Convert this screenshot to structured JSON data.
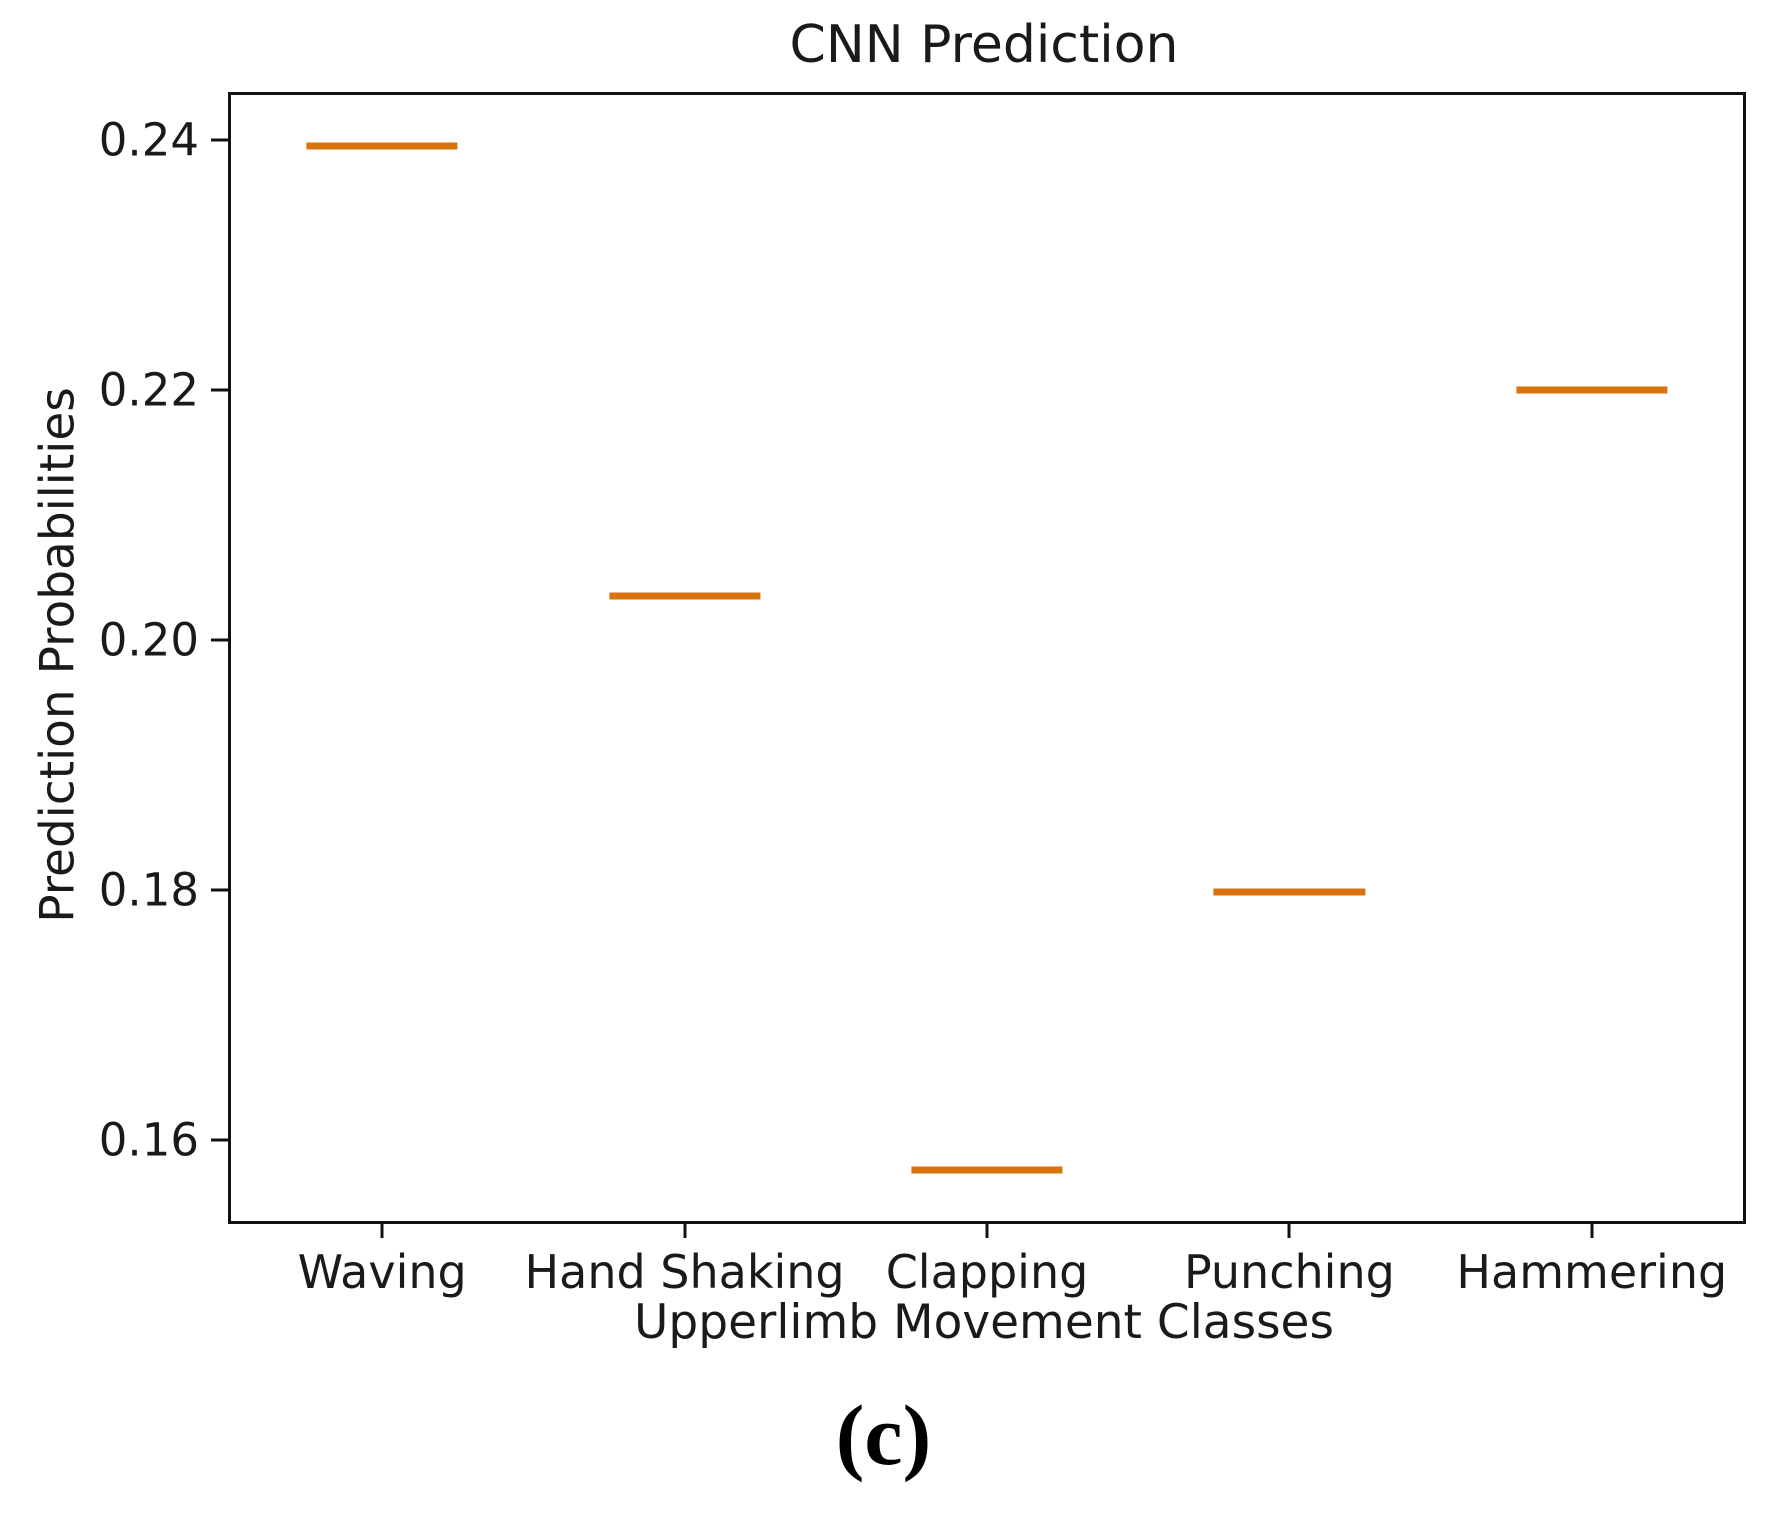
{
  "figure": {
    "caption": "(c)",
    "background": "#ffffff"
  },
  "chart_data": {
    "type": "boxplot-median-lines",
    "title": "CNN Prediction",
    "xlabel": "Upperlimb Movement Classes",
    "ylabel": "Prediction Probabilities",
    "categories": [
      "Waving",
      "Hand Shaking",
      "Clapping",
      "Punching",
      "Hammering"
    ],
    "values": [
      0.2395,
      0.2035,
      0.1576,
      0.1798,
      0.22
    ],
    "ytick_labels": [
      "0.16",
      "0.18",
      "0.20",
      "0.22",
      "0.24"
    ],
    "ylim": [
      0.1535,
      0.2436
    ],
    "grid": false,
    "legend": null,
    "line_width_fraction_of_slot": 0.5,
    "colors": {
      "median_line": "#d9730d",
      "spine": "#111111",
      "text": "#1a1a1a"
    }
  }
}
